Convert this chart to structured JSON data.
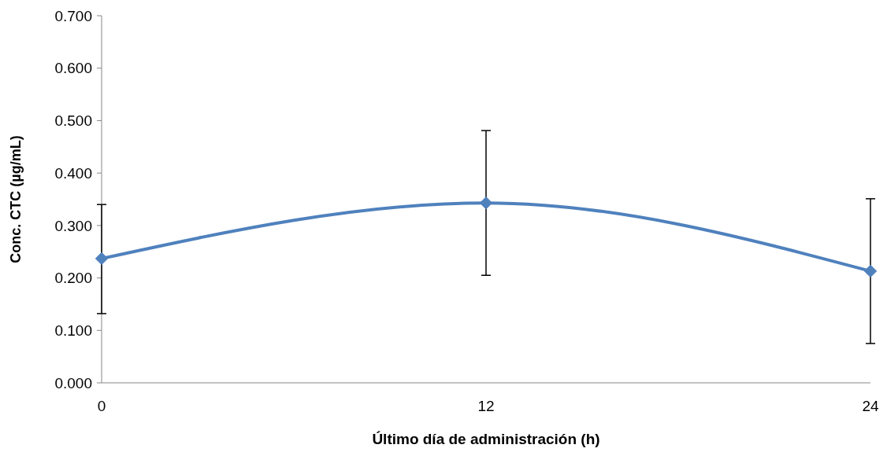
{
  "chart_data": {
    "type": "line",
    "xlabel": "Último día de administración (h)",
    "ylabel": "Conc. CTC (µg/mL)",
    "x": [
      0,
      12,
      24
    ],
    "series": [
      {
        "color": "#4f81bd",
        "values": [
          0.237,
          0.343,
          0.213
        ],
        "errors": [
          [
            0.132,
            0.34
          ],
          [
            0.205,
            0.481
          ],
          [
            0.075,
            0.351
          ]
        ]
      }
    ],
    "xlim": [
      0,
      24
    ],
    "xticks": [
      0,
      12,
      24
    ],
    "ylim": [
      0,
      0.7
    ],
    "yticks": [
      {
        "value": 0,
        "label": "0.000"
      },
      {
        "value": 0.1,
        "label": "0.100"
      },
      {
        "value": 0.2,
        "label": "0.200"
      },
      {
        "value": 0.3,
        "label": "0.300"
      },
      {
        "value": 0.4,
        "label": "0.400"
      },
      {
        "value": 0.5,
        "label": "0.500"
      },
      {
        "value": 0.6,
        "label": "0.600"
      },
      {
        "value": 0.7,
        "label": "0.700"
      }
    ],
    "marker": "diamond",
    "line_style": "solid"
  }
}
